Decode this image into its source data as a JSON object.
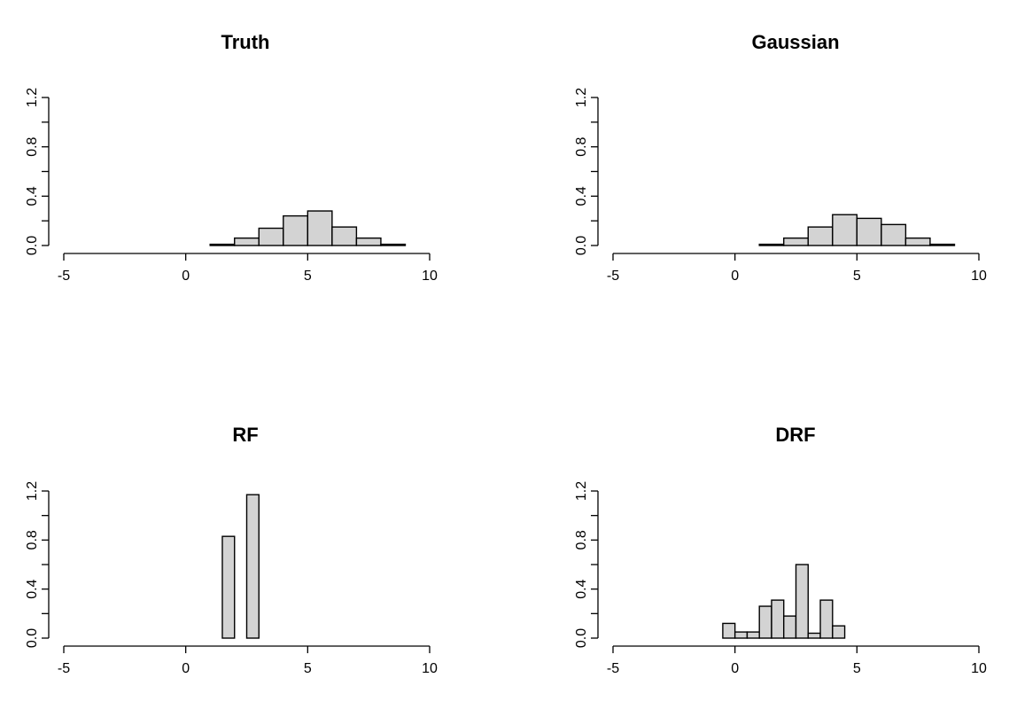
{
  "chart_data": [
    {
      "type": "bar",
      "title": "Truth",
      "xlabel": "",
      "ylabel": "",
      "xlim": [
        -5,
        10
      ],
      "ylim": [
        0,
        1.2
      ],
      "xticks": [
        "-5",
        "0",
        "5",
        "10"
      ],
      "yticks": [
        "0.0",
        "0.4",
        "0.8",
        "1.2"
      ],
      "bins": [
        {
          "x0": 0,
          "x1": 1,
          "density": 0.0
        },
        {
          "x0": 1,
          "x1": 2,
          "density": 0.01
        },
        {
          "x0": 2,
          "x1": 3,
          "density": 0.06
        },
        {
          "x0": 3,
          "x1": 4,
          "density": 0.14
        },
        {
          "x0": 4,
          "x1": 5,
          "density": 0.24
        },
        {
          "x0": 5,
          "x1": 6,
          "density": 0.28
        },
        {
          "x0": 6,
          "x1": 7,
          "density": 0.15
        },
        {
          "x0": 7,
          "x1": 8,
          "density": 0.06
        },
        {
          "x0": 8,
          "x1": 9,
          "density": 0.01
        },
        {
          "x0": 9,
          "x1": 10,
          "density": 0.0
        },
        {
          "x0": 10,
          "x1": 10.6,
          "density": 0.0
        }
      ]
    },
    {
      "type": "bar",
      "title": "Gaussian",
      "xlabel": "",
      "ylabel": "",
      "xlim": [
        -5,
        10
      ],
      "ylim": [
        0,
        1.2
      ],
      "xticks": [
        "-5",
        "0",
        "5",
        "10"
      ],
      "yticks": [
        "0.0",
        "0.4",
        "0.8",
        "1.2"
      ],
      "bins": [
        {
          "x0": 0,
          "x1": 1,
          "density": 0.0
        },
        {
          "x0": 1,
          "x1": 2,
          "density": 0.01
        },
        {
          "x0": 2,
          "x1": 3,
          "density": 0.06
        },
        {
          "x0": 3,
          "x1": 4,
          "density": 0.15
        },
        {
          "x0": 4,
          "x1": 5,
          "density": 0.25
        },
        {
          "x0": 5,
          "x1": 6,
          "density": 0.22
        },
        {
          "x0": 6,
          "x1": 7,
          "density": 0.17
        },
        {
          "x0": 7,
          "x1": 8,
          "density": 0.06
        },
        {
          "x0": 8,
          "x1": 9,
          "density": 0.01
        },
        {
          "x0": 9,
          "x1": 10,
          "density": 0.0
        }
      ]
    },
    {
      "type": "bar",
      "title": "RF",
      "xlabel": "",
      "ylabel": "",
      "xlim": [
        -5,
        10
      ],
      "ylim": [
        0,
        1.2
      ],
      "xticks": [
        "-5",
        "0",
        "5",
        "10"
      ],
      "yticks": [
        "0.0",
        "0.4",
        "0.8",
        "1.2"
      ],
      "bins": [
        {
          "x0": -0.5,
          "x1": 0,
          "density": 0.0
        },
        {
          "x0": 0,
          "x1": 0.5,
          "density": 0.0
        },
        {
          "x0": 0.5,
          "x1": 1,
          "density": 0.0
        },
        {
          "x0": 1,
          "x1": 1.5,
          "density": 0.0
        },
        {
          "x0": 1.5,
          "x1": 2,
          "density": 0.83
        },
        {
          "x0": 2,
          "x1": 2.5,
          "density": 0.0
        },
        {
          "x0": 2.5,
          "x1": 3,
          "density": 1.17
        },
        {
          "x0": 3,
          "x1": 3.5,
          "density": 0.0
        },
        {
          "x0": 3.5,
          "x1": 4,
          "density": 0.0
        },
        {
          "x0": 4,
          "x1": 4.5,
          "density": 0.0
        }
      ]
    },
    {
      "type": "bar",
      "title": "DRF",
      "xlabel": "",
      "ylabel": "",
      "xlim": [
        -5,
        10
      ],
      "ylim": [
        0,
        1.2
      ],
      "xticks": [
        "-5",
        "0",
        "5",
        "10"
      ],
      "yticks": [
        "0.0",
        "0.4",
        "0.8",
        "1.2"
      ],
      "bins": [
        {
          "x0": -0.5,
          "x1": 0,
          "density": 0.12
        },
        {
          "x0": 0,
          "x1": 0.5,
          "density": 0.05
        },
        {
          "x0": 0.5,
          "x1": 1,
          "density": 0.05
        },
        {
          "x0": 1,
          "x1": 1.5,
          "density": 0.26
        },
        {
          "x0": 1.5,
          "x1": 2,
          "density": 0.31
        },
        {
          "x0": 2,
          "x1": 2.5,
          "density": 0.18
        },
        {
          "x0": 2.5,
          "x1": 3,
          "density": 0.6
        },
        {
          "x0": 3,
          "x1": 3.5,
          "density": 0.04
        },
        {
          "x0": 3.5,
          "x1": 4,
          "density": 0.31
        },
        {
          "x0": 4,
          "x1": 4.5,
          "density": 0.1
        }
      ]
    }
  ]
}
